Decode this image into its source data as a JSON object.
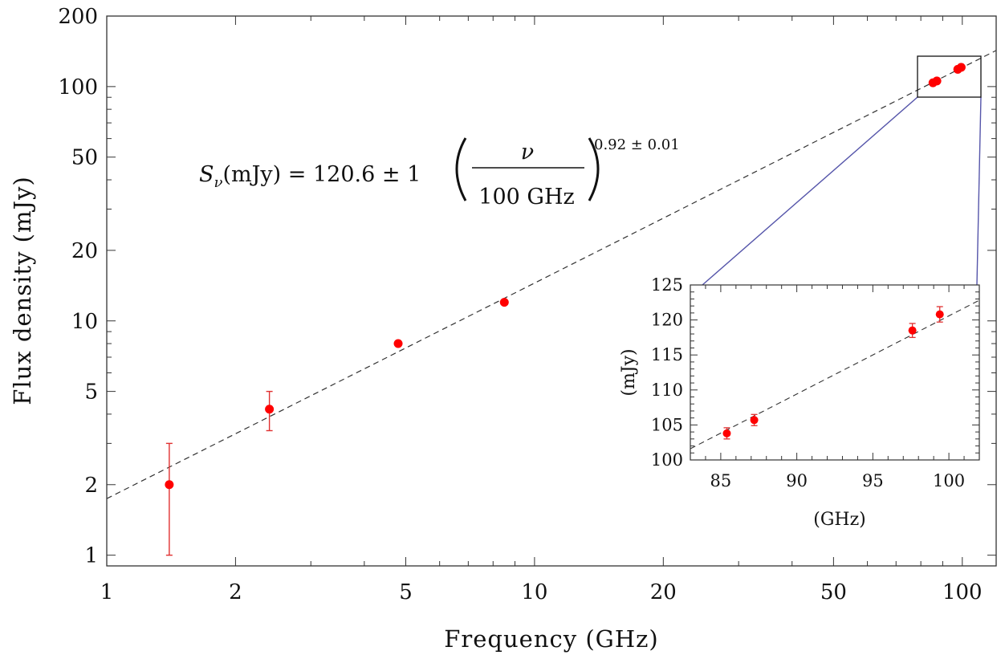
{
  "chart_data": [
    {
      "type": "scatter",
      "title": "",
      "xlabel": "Frequency (GHz)",
      "ylabel": "Flux density (mJy)",
      "xscale": "log",
      "yscale": "log",
      "xlim": [
        1,
        120
      ],
      "ylim": [
        0.9,
        200
      ],
      "xticks": [
        1,
        2,
        5,
        10,
        20,
        50,
        100
      ],
      "xtick_labels": [
        "1",
        "2",
        "5",
        "10",
        "20",
        "50",
        "100"
      ],
      "yticks": [
        1,
        2,
        5,
        10,
        20,
        50,
        100,
        200
      ],
      "ytick_labels": [
        "1",
        "2",
        "5",
        "10",
        "20",
        "50",
        "100",
        "200"
      ],
      "grid": false,
      "points": [
        {
          "x": 1.4,
          "y": 2.0,
          "yerr_low": 1.0,
          "yerr_high": 3.0
        },
        {
          "x": 2.4,
          "y": 4.2,
          "yerr_low": 3.4,
          "yerr_high": 5.0
        },
        {
          "x": 4.8,
          "y": 8.0
        },
        {
          "x": 8.5,
          "y": 12.0
        },
        {
          "x": 85.4,
          "y": 103.8
        },
        {
          "x": 87.2,
          "y": 105.7
        },
        {
          "x": 97.6,
          "y": 118.5
        },
        {
          "x": 99.4,
          "y": 120.8
        }
      ],
      "fit": {
        "label_lhs": "S",
        "label_sub": "ν",
        "label_unit": "(mJy) = 120.6 ± 1",
        "numerator": "ν",
        "denominator": "100 GHz",
        "exponent": "0.92 ± 0.01",
        "amplitude": 120.6,
        "index": 0.92,
        "pivot_GHz": 100
      },
      "marker_color": "#ff0000",
      "errorbar_color": "#e03030",
      "fit_line_color": "#333333",
      "zoom_box_color": "#111111",
      "connector_color": "#5555aa"
    },
    {
      "type": "scatter",
      "title": "",
      "xlabel": "(GHz)",
      "ylabel": "(mJy)",
      "xlim": [
        83,
        102
      ],
      "ylim": [
        100,
        125
      ],
      "xticks": [
        85,
        90,
        95,
        100
      ],
      "xtick_labels": [
        "85",
        "90",
        "95",
        "100"
      ],
      "yticks": [
        100,
        105,
        110,
        115,
        120,
        125
      ],
      "ytick_labels": [
        "100",
        "105",
        "110",
        "115",
        "120",
        "125"
      ],
      "grid": false,
      "points": [
        {
          "x": 85.4,
          "y": 103.8,
          "yerr_low": 103.0,
          "yerr_high": 104.6
        },
        {
          "x": 87.2,
          "y": 105.7,
          "yerr_low": 104.9,
          "yerr_high": 106.5
        },
        {
          "x": 97.6,
          "y": 118.5,
          "yerr_low": 117.5,
          "yerr_high": 119.5
        },
        {
          "x": 99.4,
          "y": 120.8,
          "yerr_low": 119.7,
          "yerr_high": 121.9
        }
      ]
    }
  ]
}
